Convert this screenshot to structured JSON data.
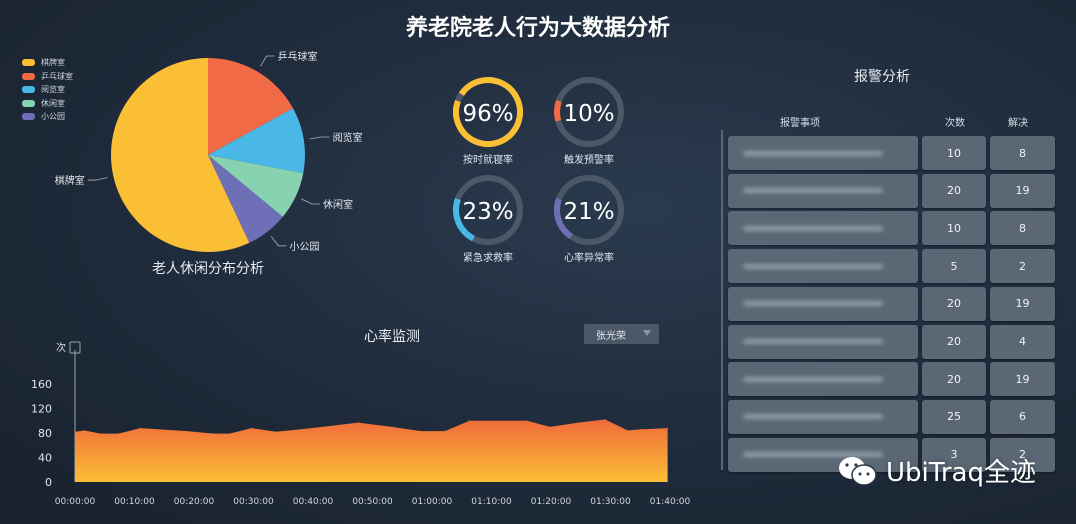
{
  "title": "养老院老人行为大数据分析",
  "chart_data": [
    {
      "type": "pie",
      "title": "老人休闲分布分析",
      "legend_position": "top-left",
      "categories": [
        "棋牌室",
        "乒乓球室",
        "阅览室",
        "休闲室",
        "小公园"
      ],
      "slice_labels": [
        "棋牌室",
        "乒乓球室",
        "阅览室",
        "休闲室",
        "小公园"
      ],
      "values": [
        57,
        17,
        11,
        8,
        7
      ],
      "colors": [
        "#fbbf36",
        "#f06a45",
        "#4ab8e6",
        "#87d2b0",
        "#6f6fb8"
      ]
    },
    {
      "type": "area",
      "title": "心率监测",
      "ylabel": "次",
      "ylim": [
        0,
        160
      ],
      "yticks": [
        "0",
        "40",
        "80",
        "120",
        "160"
      ],
      "xticks": [
        "00:00:00",
        "00:10:00",
        "00:20:00",
        "00:30:00",
        "00:40:00",
        "00:50:00",
        "01:00:00",
        "01:10:00",
        "01:20:00",
        "01:30:00",
        "01:40:00"
      ],
      "x": [
        "00:00:00",
        "00:01:36",
        "00:04:18",
        "00:07:18",
        "00:11:00",
        "00:18:48",
        "00:23:18",
        "00:26:00",
        "00:29:42",
        "00:33:48",
        "00:39:48",
        "00:47:36",
        "00:53:18",
        "00:58:06",
        "01:02:12",
        "01:06:18",
        "01:16:00",
        "01:19:48",
        "01:24:36",
        "01:29:06",
        "01:32:54",
        "01:35:06",
        "01:39:36"
      ],
      "values": [
        82,
        84,
        79,
        79,
        88,
        83,
        79,
        79,
        88,
        82,
        88,
        97,
        90,
        83,
        83,
        100,
        100,
        90,
        97,
        102,
        84,
        86,
        88
      ],
      "fill_gradient": [
        "#f06a3a",
        "#fbbf36"
      ]
    }
  ],
  "gauges": [
    {
      "value": 96,
      "text": "96%",
      "label": "按时就寝率",
      "color": "#fbbf36"
    },
    {
      "value": 10,
      "text": "10%",
      "label": "触发预警率",
      "color": "#f06a45"
    },
    {
      "value": 23,
      "text": "23%",
      "label": "紧急求救率",
      "color": "#4ab8e6"
    },
    {
      "value": 21,
      "text": "21%",
      "label": "心率异常率",
      "color": "#6f6fb8"
    }
  ],
  "heart": {
    "person_select": "张光荣"
  },
  "alarm": {
    "title": "报警分析",
    "headers": [
      "报警事项",
      "次数",
      "解决"
    ],
    "rows": [
      {
        "count": "10",
        "resolved": "8"
      },
      {
        "count": "20",
        "resolved": "19"
      },
      {
        "count": "10",
        "resolved": "8"
      },
      {
        "count": "5",
        "resolved": "2"
      },
      {
        "count": "20",
        "resolved": "19"
      },
      {
        "count": "20",
        "resolved": "4"
      },
      {
        "count": "20",
        "resolved": "19"
      },
      {
        "count": "25",
        "resolved": "6"
      },
      {
        "count": "3",
        "resolved": "2"
      }
    ]
  },
  "watermark": "UbiTraq全迹"
}
